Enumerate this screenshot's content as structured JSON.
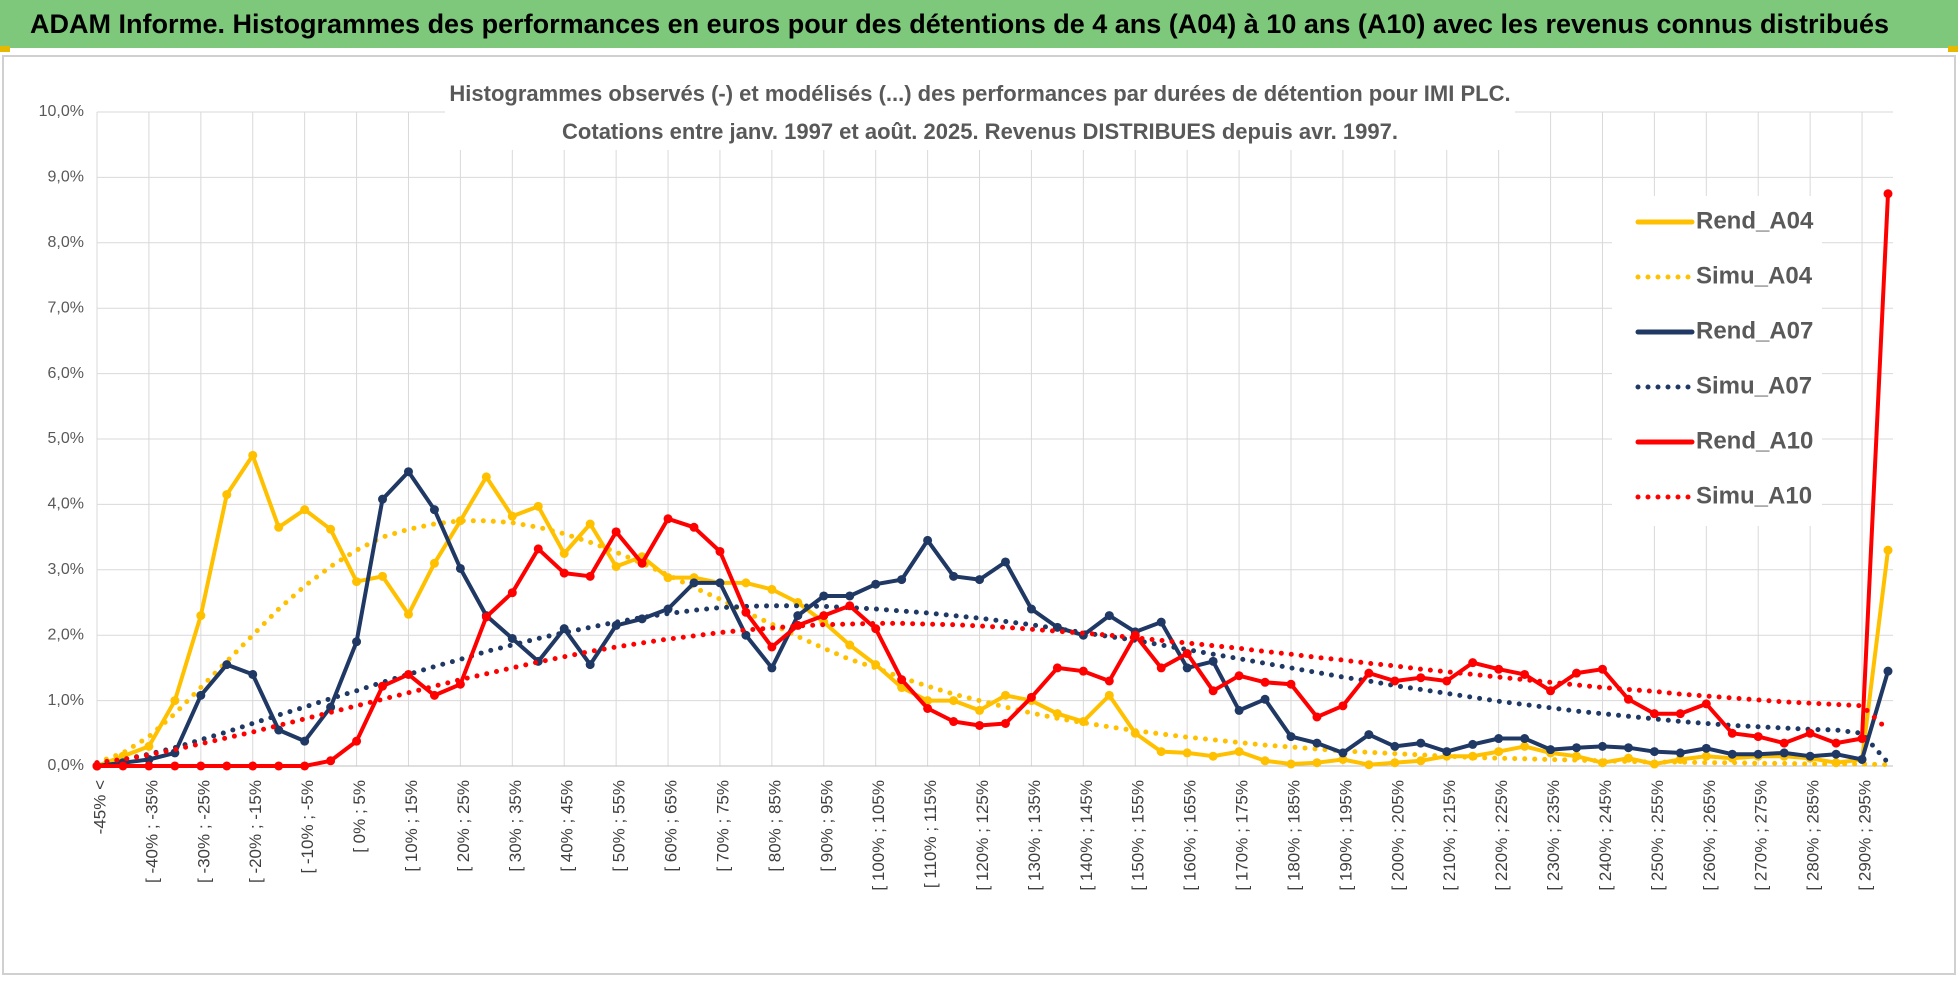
{
  "page_title": "ADAM Informe. Histogrammes des performances en euros pour des détentions de 4 ans (A04) à 10 ans (A10) avec les revenus connus distribués",
  "chart_data": {
    "type": "line",
    "title": "Histogrammes observés (-) et modélisés (...) des performances par durées de détention pour IMI PLC.",
    "subtitle": "Cotations entre janv. 1997 et août. 2025. Revenus DISTRIBUES depuis avr. 1997.",
    "categories": [
      "-45% <",
      null,
      "[ -40% ; -35%",
      null,
      "[ -30% ; -25%",
      null,
      "[ -20% ; -15%",
      null,
      "[ -10% ; -5%",
      null,
      "[ 0% ; 5%",
      null,
      "[ 10% ; 15%",
      null,
      "[ 20% ; 25%",
      null,
      "[ 30% ; 35%",
      null,
      "[ 40% ; 45%",
      null,
      "[ 50% ; 55%",
      null,
      "[ 60% ; 65%",
      null,
      "[ 70% ; 75%",
      null,
      "[ 80% ; 85%",
      null,
      "[ 90% ; 95%",
      null,
      "[ 100% ; 105%",
      null,
      "[ 110% ; 115%",
      null,
      "[ 120% ; 125%",
      null,
      "[ 130% ; 135%",
      null,
      "[ 140% ; 145%",
      null,
      "[ 150% ; 155%",
      null,
      "[ 160% ; 165%",
      null,
      "[ 170% ; 175%",
      null,
      "[ 180% ; 185%",
      null,
      "[ 190% ; 195%",
      null,
      "[ 200% ; 205%",
      null,
      "[ 210% ; 215%",
      null,
      "[ 220% ; 225%",
      null,
      "[ 230% ; 235%",
      null,
      "[ 240% ; 245%",
      null,
      "[ 250% ; 255%",
      null,
      "[ 260% ; 265%",
      null,
      "[ 270% ; 275%",
      null,
      "[ 280% ; 285%",
      null,
      "[ 290% ; 295%",
      null
    ],
    "series": [
      {
        "name": "Rend_A04",
        "color": "#ffc000",
        "line_style": "solid",
        "markers": true,
        "values": [
          0,
          0.15,
          0.3,
          1.0,
          2.3,
          4.15,
          4.75,
          3.65,
          3.92,
          3.62,
          2.82,
          2.9,
          2.32,
          3.1,
          3.75,
          4.42,
          3.82,
          3.97,
          3.25,
          3.7,
          3.05,
          3.2,
          2.88,
          2.88,
          2.8,
          2.8,
          2.7,
          2.5,
          2.2,
          1.85,
          1.55,
          1.2,
          1.0,
          1.0,
          0.85,
          1.08,
          1.0,
          0.8,
          0.68,
          1.08,
          0.5,
          0.22,
          0.2,
          0.15,
          0.22,
          0.08,
          0.03,
          0.05,
          0.1,
          0.02,
          0.05,
          0.08,
          0.15,
          0.15,
          0.22,
          0.3,
          0.2,
          0.15,
          0.05,
          0.12,
          0.03,
          0.1,
          0.15,
          0.12,
          0.15,
          0.15,
          0.12,
          0.05,
          0.1,
          3.3
        ]
      },
      {
        "name": "Simu_A04",
        "color": "#ffc000",
        "line_style": "dotted",
        "markers": false,
        "values": [
          0.05,
          0.2,
          0.45,
          0.8,
          1.2,
          1.6,
          2.0,
          2.4,
          2.75,
          3.05,
          3.3,
          3.5,
          3.62,
          3.7,
          3.75,
          3.75,
          3.72,
          3.65,
          3.55,
          3.42,
          3.27,
          3.1,
          2.92,
          2.73,
          2.55,
          2.35,
          2.17,
          1.98,
          1.8,
          1.63,
          1.5,
          1.35,
          1.22,
          1.1,
          1.0,
          0.9,
          0.81,
          0.73,
          0.66,
          0.6,
          0.54,
          0.49,
          0.44,
          0.4,
          0.36,
          0.32,
          0.29,
          0.26,
          0.23,
          0.21,
          0.19,
          0.17,
          0.15,
          0.13,
          0.12,
          0.11,
          0.1,
          0.09,
          0.08,
          0.07,
          0.06,
          0.06,
          0.05,
          0.05,
          0.04,
          0.04,
          0.03,
          0.03,
          0.03,
          0.02
        ]
      },
      {
        "name": "Rend_A07",
        "color": "#1f3864",
        "line_style": "solid",
        "markers": true,
        "values": [
          0,
          0.05,
          0.1,
          0.2,
          1.08,
          1.55,
          1.4,
          0.55,
          0.38,
          0.9,
          1.9,
          4.08,
          4.5,
          3.92,
          3.02,
          2.3,
          1.95,
          1.6,
          2.1,
          1.55,
          2.15,
          2.25,
          2.4,
          2.8,
          2.8,
          2.0,
          1.5,
          2.3,
          2.6,
          2.6,
          2.78,
          2.85,
          3.45,
          2.9,
          2.85,
          3.12,
          2.4,
          2.12,
          2.0,
          2.3,
          2.05,
          2.2,
          1.5,
          1.6,
          0.85,
          1.02,
          0.45,
          0.35,
          0.2,
          0.48,
          0.3,
          0.35,
          0.22,
          0.33,
          0.42,
          0.42,
          0.25,
          0.28,
          0.3,
          0.28,
          0.22,
          0.2,
          0.27,
          0.18,
          0.18,
          0.2,
          0.15,
          0.18,
          0.1,
          1.45
        ]
      },
      {
        "name": "Simu_A07",
        "color": "#1f3864",
        "line_style": "dotted",
        "markers": false,
        "values": [
          0.05,
          0.1,
          0.18,
          0.28,
          0.4,
          0.52,
          0.65,
          0.78,
          0.9,
          1.03,
          1.15,
          1.28,
          1.4,
          1.52,
          1.63,
          1.75,
          1.85,
          1.95,
          2.04,
          2.12,
          2.2,
          2.27,
          2.33,
          2.38,
          2.42,
          2.44,
          2.45,
          2.45,
          2.44,
          2.42,
          2.4,
          2.37,
          2.34,
          2.3,
          2.26,
          2.21,
          2.16,
          2.1,
          2.04,
          1.98,
          1.92,
          1.85,
          1.78,
          1.71,
          1.64,
          1.57,
          1.5,
          1.43,
          1.36,
          1.3,
          1.23,
          1.17,
          1.11,
          1.05,
          0.99,
          0.94,
          0.89,
          0.84,
          0.8,
          0.76,
          0.72,
          0.68,
          0.65,
          0.62,
          0.6,
          0.58,
          0.56,
          0.55,
          0.5,
          0.05
        ]
      },
      {
        "name": "Rend_A10",
        "color": "#ff0000",
        "line_style": "solid",
        "markers": true,
        "values": [
          0,
          0,
          0,
          0,
          0,
          0,
          0,
          0,
          0,
          0.08,
          0.38,
          1.22,
          1.4,
          1.08,
          1.25,
          2.28,
          2.65,
          3.32,
          2.95,
          2.9,
          3.58,
          3.1,
          3.78,
          3.65,
          3.28,
          2.35,
          1.82,
          2.15,
          2.3,
          2.45,
          2.1,
          1.32,
          0.88,
          0.68,
          0.62,
          0.65,
          1.05,
          1.5,
          1.45,
          1.3,
          2.0,
          1.5,
          1.72,
          1.15,
          1.38,
          1.28,
          1.25,
          0.75,
          0.92,
          1.42,
          1.3,
          1.35,
          1.3,
          1.58,
          1.48,
          1.4,
          1.15,
          1.42,
          1.48,
          1.02,
          0.8,
          0.8,
          0.95,
          0.5,
          0.45,
          0.35,
          0.5,
          0.35,
          0.42,
          8.75
        ]
      },
      {
        "name": "Simu_A10",
        "color": "#ff0000",
        "line_style": "dotted",
        "markers": false,
        "values": [
          0.05,
          0.1,
          0.17,
          0.25,
          0.34,
          0.43,
          0.52,
          0.62,
          0.72,
          0.82,
          0.92,
          1.02,
          1.12,
          1.22,
          1.32,
          1.41,
          1.5,
          1.59,
          1.67,
          1.75,
          1.82,
          1.88,
          1.94,
          1.99,
          2.04,
          2.08,
          2.11,
          2.14,
          2.16,
          2.17,
          2.18,
          2.18,
          2.17,
          2.16,
          2.14,
          2.12,
          2.09,
          2.06,
          2.03,
          2.0,
          1.96,
          1.92,
          1.88,
          1.84,
          1.8,
          1.75,
          1.71,
          1.66,
          1.62,
          1.57,
          1.53,
          1.48,
          1.44,
          1.4,
          1.36,
          1.32,
          1.28,
          1.24,
          1.2,
          1.17,
          1.14,
          1.1,
          1.07,
          1.04,
          1.01,
          0.98,
          0.96,
          0.94,
          0.92,
          0.55
        ]
      }
    ],
    "ylim": [
      0,
      10
    ],
    "yticks": [
      {
        "value": 0,
        "label": "0,0%"
      },
      {
        "value": 1,
        "label": "1,0%"
      },
      {
        "value": 2,
        "label": "2,0%"
      },
      {
        "value": 3,
        "label": "3,0%"
      },
      {
        "value": 4,
        "label": "4,0%"
      },
      {
        "value": 5,
        "label": "5,0%"
      },
      {
        "value": 6,
        "label": "6,0%"
      },
      {
        "value": 7,
        "label": "7,0%"
      },
      {
        "value": 8,
        "label": "8,0%"
      },
      {
        "value": 9,
        "label": "9,0%"
      },
      {
        "value": 10,
        "label": "10,0%"
      }
    ],
    "grid": true,
    "legend": "right"
  }
}
